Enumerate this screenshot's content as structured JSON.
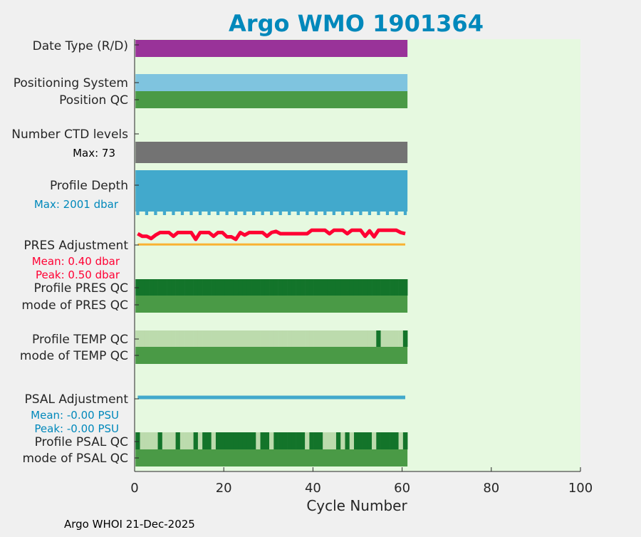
{
  "chart_data": {
    "type": "bar",
    "title": "Argo WMO 1901364",
    "xlabel": "Cycle Number",
    "xlim": [
      0,
      100
    ],
    "xticks": [
      "0",
      "20",
      "40",
      "60",
      "80",
      "100"
    ],
    "n_cycles": 61,
    "rows": {
      "date_type": {
        "label": "Date Type (R/D)",
        "color": "#993399"
      },
      "positioning_system": {
        "label": "Positioning System",
        "color": "#7fc4df"
      },
      "position_qc": {
        "label": "Position QC",
        "color": "#4a9a46"
      },
      "ctd_levels": {
        "label": "Number CTD levels",
        "max_label": "Max: 73",
        "color": "#737373"
      },
      "profile_depth": {
        "label": "Profile Depth",
        "max_label": "Max: 2001 dbar",
        "color": "#42a9cc"
      },
      "pres_adjustment": {
        "label": "PRES Adjustment",
        "mean_label": "Mean: 0.40 dbar",
        "peak_label": "Peak: 0.50 dbar",
        "color": "#ff0033",
        "baseline_color": "#f9b233",
        "values": [
          0.38,
          0.29,
          0.29,
          0.21,
          0.33,
          0.42,
          0.42,
          0.42,
          0.29,
          0.42,
          0.42,
          0.42,
          0.42,
          0.18,
          0.42,
          0.42,
          0.42,
          0.29,
          0.42,
          0.42,
          0.27,
          0.27,
          0.18,
          0.42,
          0.33,
          0.42,
          0.42,
          0.42,
          0.42,
          0.29,
          0.42,
          0.46,
          0.38,
          0.38,
          0.38,
          0.38,
          0.38,
          0.38,
          0.38,
          0.5,
          0.5,
          0.5,
          0.5,
          0.38,
          0.5,
          0.5,
          0.5,
          0.38,
          0.5,
          0.5,
          0.5,
          0.29,
          0.48,
          0.27,
          0.5,
          0.5,
          0.5,
          0.5,
          0.5,
          0.42,
          0.38
        ]
      },
      "profile_pres_qc": {
        "label": "Profile PRES QC",
        "qc": "AAAAAAAAAAAAAAAAAAAAAAAAAAAAAAAAAAAAAAAAAAAAAAAAAAAAAAAAAAAAA"
      },
      "mode_pres_qc": {
        "label": "mode of PRES QC",
        "color": "#4a9a46"
      },
      "profile_temp_qc": {
        "label": "Profile TEMP QC",
        "qc": "BBBBBBBBBBBBBBBBBBBBBBBBBBBBBBBBBBBBBBBBBBBBBBBBBBBBBBABBBBBA"
      },
      "mode_temp_qc": {
        "label": "mode of TEMP QC",
        "color": "#4a9a46"
      },
      "psal_adjustment": {
        "label": "PSAL Adjustment",
        "mean_label": "Mean: -0.00 PSU",
        "peak_label": "Peak: -0.00 PSU",
        "color": "#42a9cc"
      },
      "profile_psal_qc": {
        "label": "Profile PSAL QC",
        "qc": "ABBBBABBBABBBABAABAAAAAAAAABAABAAAAAAABAAABBBABABAAAABAAAAABA"
      },
      "mode_psal_qc": {
        "label": "mode of PSAL QC",
        "color": "#4a9a46"
      }
    },
    "qc_colors": {
      "A": "#13742a",
      "B": "#bcdbad"
    }
  },
  "footer": "Argo WHOI 21-Dec-2025",
  "colors": {
    "title": "#0088bb",
    "plot_bg": "#e6f9e0",
    "label": "#262626",
    "blue_text": "#0088bb",
    "red_text": "#ff0033"
  }
}
